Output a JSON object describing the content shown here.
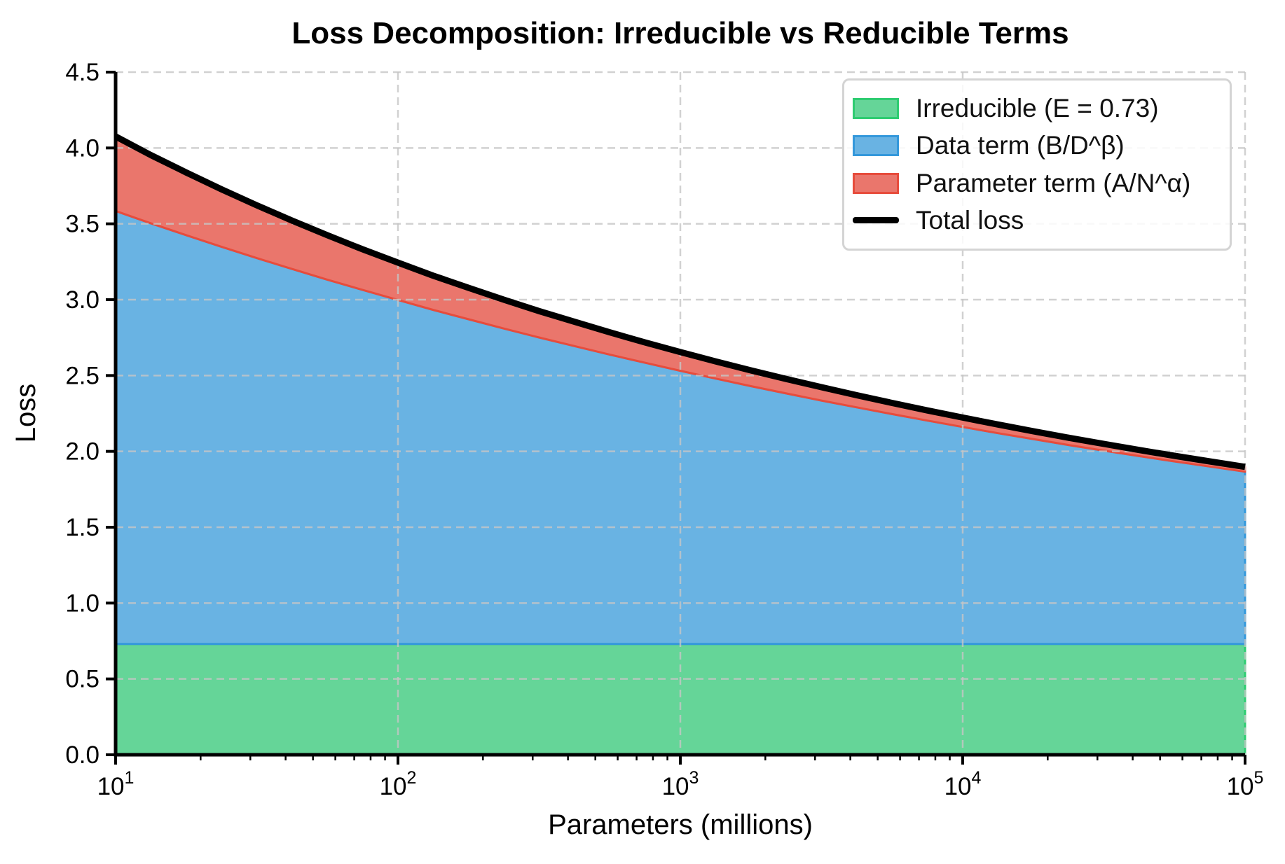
{
  "title": "Loss Decomposition: Irreducible vs Reducible Terms",
  "axes": {
    "xlabel": "Parameters (millions)",
    "ylabel": "Loss",
    "x_scale": "log",
    "x_log_range": [
      1,
      5
    ],
    "y_range": [
      0,
      4.5
    ],
    "x_ticks": [
      {
        "base": "10",
        "exp": "1"
      },
      {
        "base": "10",
        "exp": "2"
      },
      {
        "base": "10",
        "exp": "3"
      },
      {
        "base": "10",
        "exp": "4"
      },
      {
        "base": "10",
        "exp": "5"
      }
    ],
    "y_ticks": [
      "0.0",
      "0.5",
      "1.0",
      "1.5",
      "2.0",
      "2.5",
      "3.0",
      "3.5",
      "4.0",
      "4.5"
    ],
    "grid": {
      "visible": true,
      "style": "dashed",
      "color": "#c6c6c6",
      "opacity": 0.8
    }
  },
  "legend": {
    "position": "upper right"
  },
  "chart_data": {
    "type": "area",
    "stacked": true,
    "x": [
      10,
      13.3,
      17.8,
      23.7,
      31.6,
      42.2,
      56.2,
      75,
      100,
      133,
      178,
      237,
      316,
      422,
      562,
      750,
      1000,
      1334,
      1778,
      2371,
      3162,
      4217,
      5623,
      7499,
      10000,
      13335,
      17783,
      23714,
      31623,
      42170,
      56234,
      74989,
      100000
    ],
    "series": [
      {
        "name": "Irreducible (E = 0.73)",
        "kind": "area",
        "constant": 0.73,
        "fill": "#65d598",
        "edge": "#2ecc71"
      },
      {
        "name": "Data term (B/D^β)",
        "kind": "area",
        "fill": "#69b3e3",
        "edge": "#3498db",
        "values": [
          2.855,
          2.774,
          2.695,
          2.619,
          2.544,
          2.472,
          2.402,
          2.334,
          2.268,
          2.203,
          2.141,
          2.08,
          2.021,
          1.964,
          1.908,
          1.854,
          1.801,
          1.75,
          1.7,
          1.652,
          1.605,
          1.56,
          1.516,
          1.473,
          1.431,
          1.39,
          1.351,
          1.312,
          1.275,
          1.239,
          1.204,
          1.17,
          1.136
        ]
      },
      {
        "name": "Parameter term (A/N^α)",
        "kind": "area",
        "fill": "#ea766c",
        "edge": "#e74c3c",
        "values": [
          0.491,
          0.45,
          0.413,
          0.379,
          0.348,
          0.319,
          0.293,
          0.268,
          0.246,
          0.226,
          0.207,
          0.19,
          0.174,
          0.16,
          0.147,
          0.135,
          0.123,
          0.113,
          0.104,
          0.095,
          0.087,
          0.08,
          0.073,
          0.067,
          0.062,
          0.057,
          0.052,
          0.048,
          0.044,
          0.04,
          0.037,
          0.034,
          0.031
        ]
      },
      {
        "name": "Total loss",
        "kind": "line",
        "color": "#000000",
        "values": [
          4.076,
          3.954,
          3.838,
          3.728,
          3.622,
          3.521,
          3.425,
          3.332,
          3.244,
          3.159,
          3.078,
          3.0,
          2.925,
          2.854,
          2.785,
          2.718,
          2.655,
          2.593,
          2.534,
          2.477,
          2.423,
          2.37,
          2.319,
          2.27,
          2.223,
          2.177,
          2.133,
          2.09,
          2.049,
          2.009,
          1.971,
          1.934,
          1.898
        ]
      }
    ]
  }
}
